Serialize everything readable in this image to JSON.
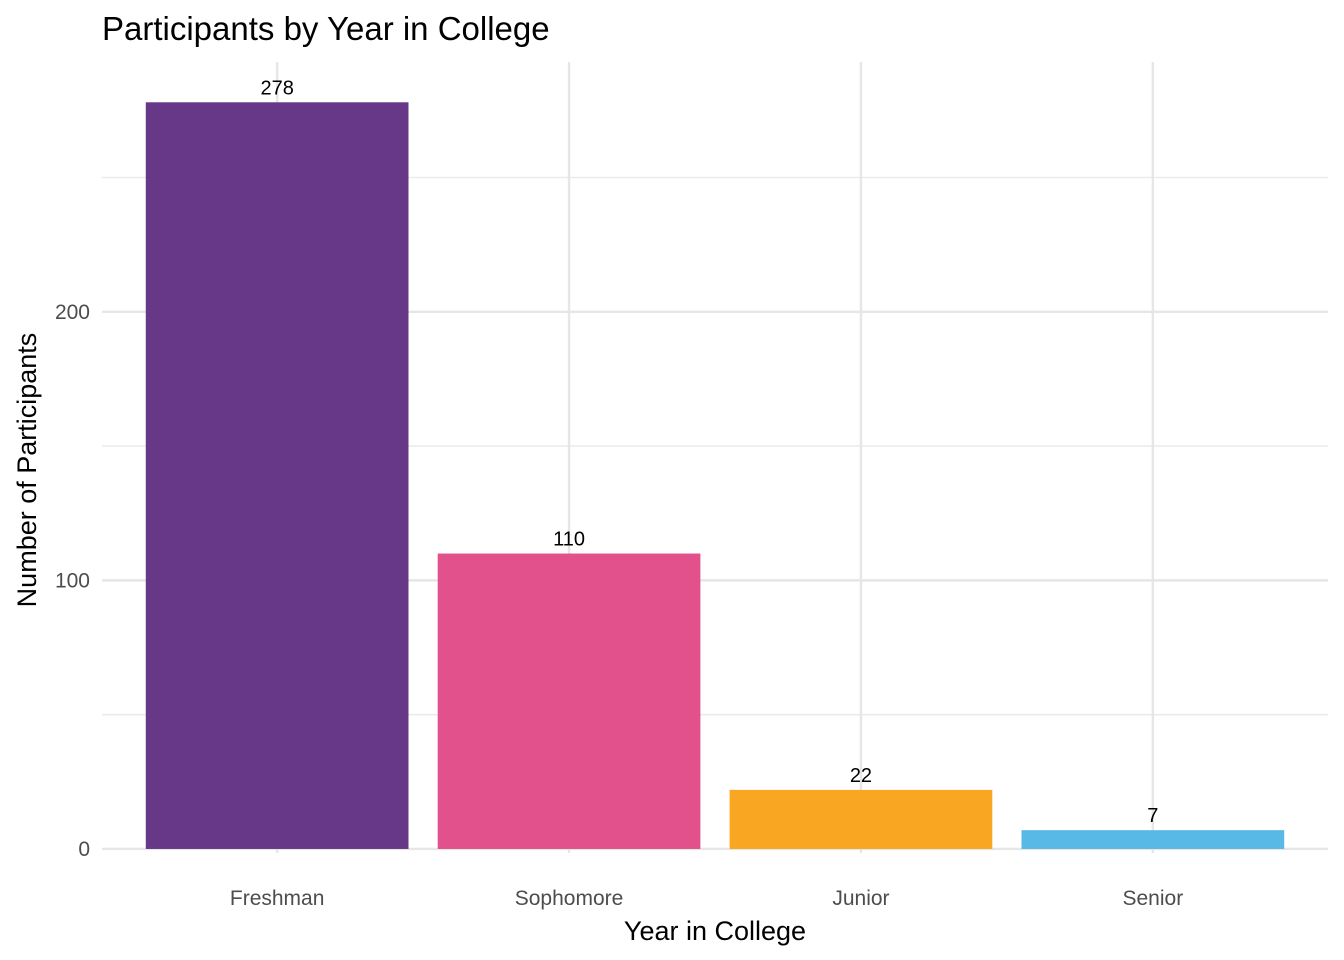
{
  "chart_data": {
    "type": "bar",
    "title": "Participants by Year in College",
    "xlabel": "Year in College",
    "ylabel": "Number of Participants",
    "categories": [
      "Freshman",
      "Sophomore",
      "Junior",
      "Senior"
    ],
    "values": [
      278,
      110,
      22,
      7
    ],
    "data_labels": [
      "278",
      "110",
      "22",
      "7"
    ],
    "colors": [
      "#673888",
      "#E3518C",
      "#F9A623",
      "#58B8E6"
    ],
    "ylim": [
      -1.5,
      293
    ],
    "y_ticks": [
      0,
      100,
      200
    ],
    "y_tick_labels": [
      "0",
      "100",
      "200"
    ],
    "y_minor_ticks": [
      50,
      150,
      250
    ],
    "grid": true,
    "legend": "none"
  }
}
